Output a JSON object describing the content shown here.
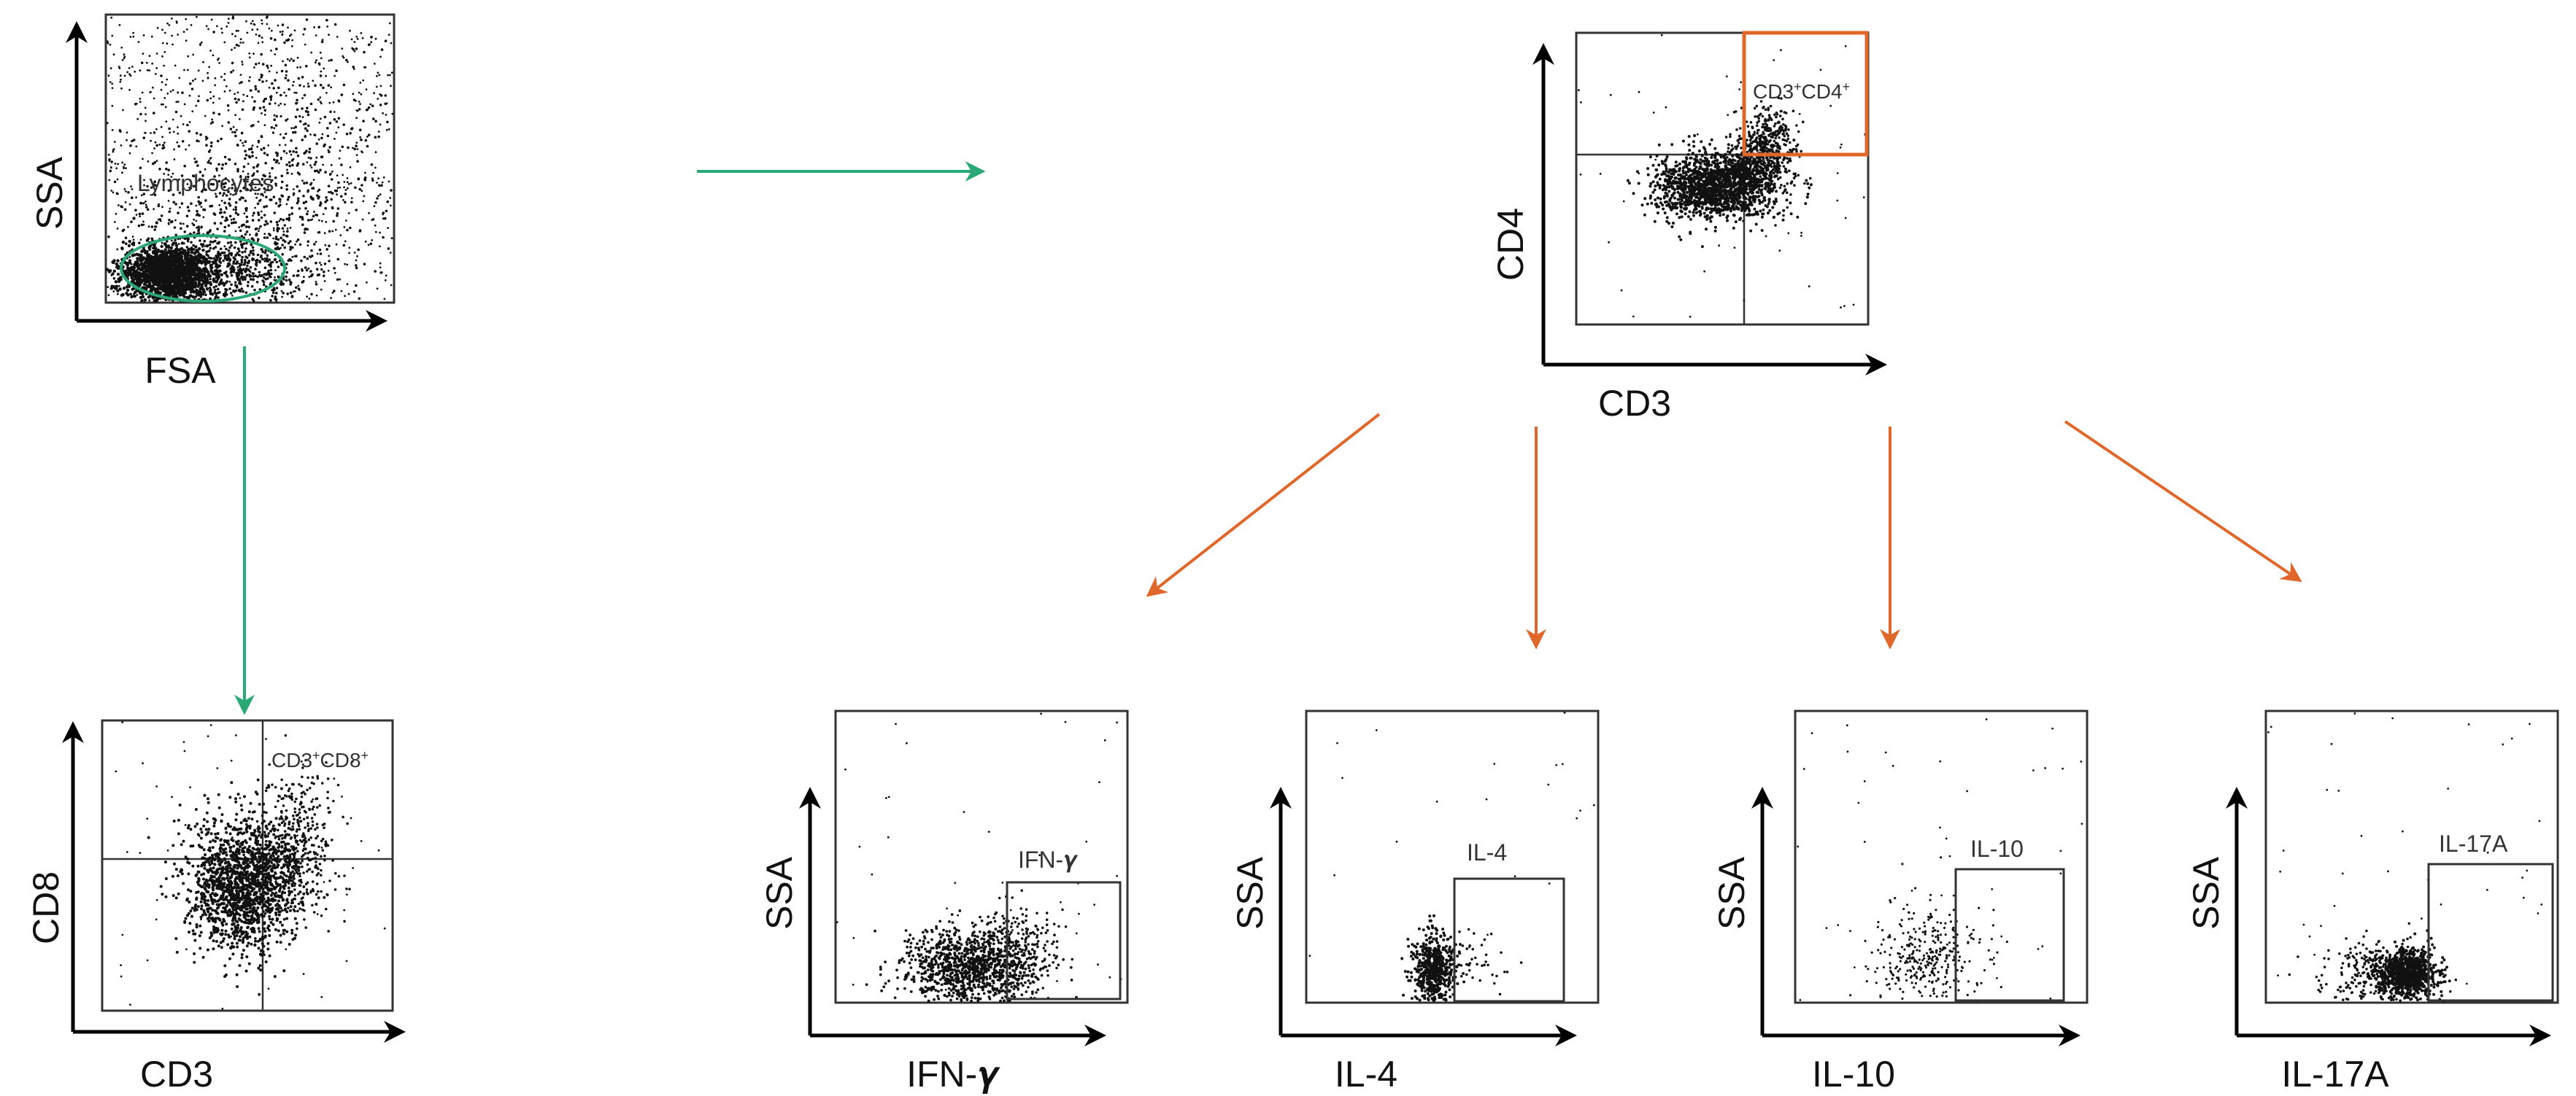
{
  "colors": {
    "green": "#2aa876",
    "orange": "#e0672a",
    "axis": "#000000",
    "dots": "#111111",
    "frame": "#333333"
  },
  "plots": {
    "lymph": {
      "ylabel": "SSA",
      "xlabel": "FSA",
      "gate_label": "Lymphocytes"
    },
    "cd8": {
      "ylabel": "CD8",
      "xlabel": "CD3",
      "gate_label": {
        "base1": "CD3",
        "sup1": "+",
        "base2": "CD8",
        "sup2": "+"
      }
    },
    "cd4": {
      "ylabel": "CD4",
      "xlabel": "CD3",
      "gate_label": {
        "base1": "CD3",
        "sup1": "+",
        "base2": "CD4",
        "sup2": "+"
      }
    },
    "ifn": {
      "ylabel": "SSA",
      "xlabel": "IFN-𝜸",
      "gate_label": "IFN-𝜸"
    },
    "il4": {
      "ylabel": "SSA",
      "xlabel": "IL-4",
      "gate_label": "IL-4"
    },
    "il10": {
      "ylabel": "SSA",
      "xlabel": "IL-10",
      "gate_label": "IL-10"
    },
    "il17a": {
      "ylabel": "SSA",
      "xlabel": "IL-17A",
      "gate_label": "IL-17A"
    }
  },
  "icons": [
    "green-arrow-icon",
    "orange-arrow-icon"
  ]
}
